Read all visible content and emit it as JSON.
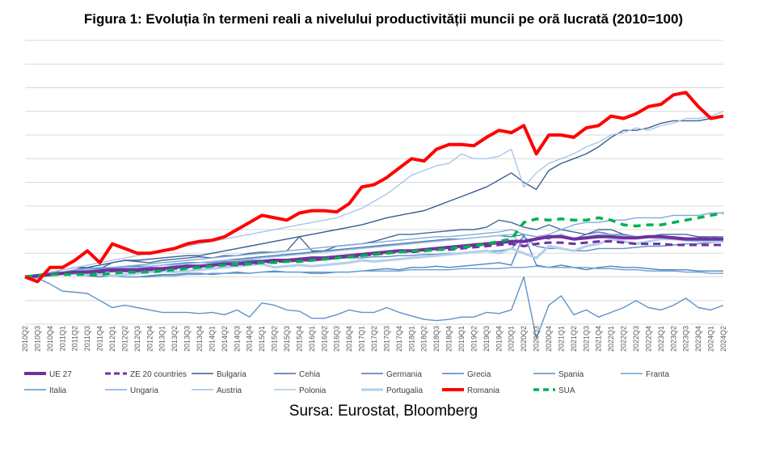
{
  "title": "Figura 1: Evoluția în termeni reali a nivelului productivității muncii pe oră lucrată (2010=100)",
  "source": "Sursa: Eurostat, Bloomberg",
  "chart_data": {
    "type": "line",
    "title": "Figura 1: Evoluția în termeni reali a nivelului productivității muncii pe oră lucrată (2010=100)",
    "xlabel": "",
    "ylabel": "",
    "grid": true,
    "y_tick_labels_visible": false,
    "legend_position": "bottom",
    "ylim": [
      80,
      200
    ],
    "x": [
      "2010Q2",
      "2010Q3",
      "2010Q4",
      "2011Q1",
      "2011Q2",
      "2011Q3",
      "2011Q4",
      "2012Q1",
      "2012Q2",
      "2012Q3",
      "2012Q4",
      "2013Q1",
      "2013Q2",
      "2013Q3",
      "2013Q4",
      "2014Q1",
      "2014Q2",
      "2014Q3",
      "2014Q4",
      "2015Q1",
      "2015Q2",
      "2015Q3",
      "2015Q4",
      "2016Q1",
      "2016Q2",
      "2016Q3",
      "2016Q4",
      "2017Q1",
      "2017Q2",
      "2017Q3",
      "2017Q4",
      "2018Q1",
      "2018Q2",
      "2018Q3",
      "2018Q4",
      "2019Q1",
      "2019Q2",
      "2019Q3",
      "2019Q4",
      "2020Q1",
      "2020Q2",
      "2020Q3",
      "2020Q4",
      "2021Q1",
      "2021Q2",
      "2021Q3",
      "2021Q4",
      "2022Q1",
      "2022Q2",
      "2022Q3",
      "2022Q4",
      "2023Q1",
      "2023Q2",
      "2023Q3",
      "2023Q4",
      "2024Q1",
      "2024Q2"
    ],
    "series": [
      {
        "name": "UE 27",
        "color": "#7030a0",
        "width": 4,
        "dash": "",
        "values": [
          100,
          100.5,
          101,
          101.5,
          102,
          102,
          102.5,
          103,
          103,
          103,
          103.5,
          103.5,
          104,
          104.5,
          104.5,
          105,
          105.5,
          105.5,
          106,
          106.5,
          107,
          107,
          107.5,
          108,
          108,
          108.5,
          109,
          109.5,
          110,
          110.5,
          111,
          111,
          111.5,
          112,
          112.5,
          113,
          113.5,
          114,
          114.5,
          115,
          115,
          116,
          117,
          117,
          116,
          116.5,
          117,
          117,
          116.5,
          116.5,
          117,
          117,
          116.5,
          116,
          116,
          116,
          116
        ]
      },
      {
        "name": "ZE 20 countries",
        "color": "#7030a0",
        "width": 3,
        "dash": "9,6",
        "values": [
          100,
          100.5,
          101,
          101.5,
          102,
          102,
          102,
          102.5,
          102.5,
          102.5,
          103,
          103,
          103.5,
          104,
          104,
          104.5,
          105,
          105,
          105.5,
          106,
          106.5,
          106.5,
          107,
          107,
          107.5,
          108,
          108.5,
          109,
          109.5,
          110,
          110.5,
          110.5,
          111,
          111.5,
          111.5,
          112,
          112.5,
          113,
          113.5,
          114,
          113,
          114,
          114.5,
          114.5,
          114,
          114.5,
          115,
          115,
          114.5,
          114,
          114,
          114,
          113.5,
          113.5,
          113.5,
          113.5,
          113.5
        ]
      },
      {
        "name": "Bulgaria",
        "color": "#3a5d8f",
        "width": 1.4,
        "dash": "",
        "values": [
          100,
          100.5,
          101,
          102,
          103,
          104,
          105,
          106,
          107,
          107,
          107.5,
          108,
          108.5,
          109,
          109,
          110,
          111,
          112,
          113,
          114,
          115,
          116,
          117,
          118,
          119,
          120,
          121,
          122,
          123.5,
          125,
          126,
          127,
          128,
          130,
          132,
          134,
          136,
          138,
          141,
          144,
          140,
          137,
          145,
          148,
          150,
          152,
          155,
          159,
          162,
          162,
          163,
          165,
          166,
          166,
          166,
          167,
          168
        ]
      },
      {
        "name": "Cehia",
        "color": "#44699c",
        "width": 1.4,
        "dash": "",
        "values": [
          100,
          101,
          101.5,
          103,
          104,
          104,
          103.5,
          106,
          107,
          106.5,
          106,
          107,
          107.5,
          108,
          108.5,
          108,
          109,
          109,
          110,
          110.5,
          110.5,
          111,
          117,
          111,
          111,
          113,
          113.5,
          114,
          115,
          116.5,
          118,
          118,
          118.5,
          119,
          119.5,
          120,
          120,
          121,
          124,
          123,
          121,
          120,
          122,
          120,
          119,
          118,
          120,
          120,
          118,
          117,
          117,
          118,
          118,
          118,
          117,
          117,
          116
        ]
      },
      {
        "name": "Germania",
        "color": "#4f77ad",
        "width": 1.4,
        "dash": "",
        "values": [
          100,
          100.5,
          101,
          102,
          102.5,
          102.5,
          103,
          104,
          104,
          104.5,
          104.5,
          105,
          105.5,
          106,
          106,
          106.5,
          107,
          107.5,
          108,
          108.5,
          109,
          109.5,
          110,
          110.5,
          111,
          111.5,
          112,
          112.5,
          113,
          113.5,
          114,
          114.5,
          115,
          115.5,
          116,
          116,
          116.5,
          117,
          117.5,
          117,
          118,
          117,
          116,
          118,
          116,
          118,
          119,
          118,
          118,
          117,
          117,
          117,
          117,
          116.5,
          116.5,
          117,
          117
        ]
      },
      {
        "name": "Grecia",
        "color": "#4e84bd",
        "width": 1.4,
        "dash": "",
        "values": [
          100,
          100,
          100.5,
          101,
          101.5,
          100.5,
          100,
          100.5,
          100,
          100,
          100.5,
          101,
          101,
          101.5,
          101.5,
          101,
          101.5,
          102,
          101.5,
          102,
          102.5,
          102,
          102,
          101.5,
          101.5,
          102,
          102,
          102.5,
          103,
          103.5,
          103,
          104,
          104,
          104.5,
          104,
          104.5,
          105,
          105.5,
          106,
          105,
          118,
          105,
          104,
          105,
          104,
          103,
          104,
          104.5,
          104,
          104,
          103.5,
          103,
          103,
          103,
          102.5,
          102.5,
          102.5
        ]
      },
      {
        "name": "Spania",
        "color": "#5b8fc5",
        "width": 1.4,
        "dash": "",
        "values": [
          100,
          100.5,
          101,
          102,
          102.5,
          103,
          103.5,
          104,
          104,
          104.5,
          104.5,
          105,
          105.5,
          106,
          106,
          106,
          106.5,
          106.5,
          107,
          107,
          107.5,
          107,
          107,
          107.5,
          107.5,
          108,
          108,
          108,
          108.5,
          108.5,
          109,
          109,
          109.5,
          109.5,
          110,
          110,
          110.5,
          111,
          111,
          112,
          117,
          113,
          112,
          112,
          111,
          111,
          112,
          112,
          112,
          112.5,
          113,
          113,
          113.5,
          114,
          114,
          114.5,
          115
        ]
      },
      {
        "name": "Franta",
        "color": "#6a9fd1",
        "width": 1.4,
        "dash": "",
        "values": [
          100,
          101,
          101,
          101.5,
          101,
          101,
          101,
          100.5,
          100,
          100,
          100,
          100.5,
          100.5,
          101,
          101,
          101.5,
          101.5,
          101.5,
          101.5,
          102,
          102,
          102,
          102,
          102,
          102,
          102,
          102,
          102.5,
          102.5,
          102.5,
          102.5,
          103,
          103,
          103,
          103,
          103.5,
          103.5,
          103.5,
          103.5,
          104,
          104,
          104.5,
          104,
          104,
          104,
          104,
          103.5,
          103.5,
          103,
          103,
          102.5,
          102.5,
          102.5,
          102,
          102,
          101.5,
          101.5
        ]
      },
      {
        "name": "Italia",
        "color": "#5c93cc",
        "width": 1.4,
        "dash": "",
        "values": [
          100,
          99.5,
          97,
          94,
          93.5,
          93,
          90,
          87,
          88,
          87,
          86,
          85,
          85,
          85,
          84.5,
          85,
          84,
          86,
          83,
          89,
          88,
          86,
          85.5,
          82.5,
          82.5,
          84,
          86,
          85,
          85,
          87,
          85,
          83.5,
          82,
          81.5,
          82,
          83,
          83,
          85,
          84.5,
          86,
          100,
          74,
          88,
          92,
          84,
          86,
          83,
          85,
          87,
          90,
          87,
          86,
          88,
          91,
          87,
          86,
          88
        ]
      },
      {
        "name": "Ungaria",
        "color": "#7eabd9",
        "width": 1.4,
        "dash": "",
        "values": [
          100,
          101,
          102,
          102,
          103,
          103.5,
          104,
          104,
          104.5,
          105,
          105.5,
          106,
          106.5,
          107,
          107.5,
          108,
          108.5,
          109,
          109.5,
          110,
          110.5,
          111,
          111.5,
          112,
          112.5,
          113,
          113.5,
          114,
          114.5,
          115,
          115.5,
          116,
          116.5,
          117,
          117,
          117.5,
          118,
          118.5,
          119,
          120,
          118,
          117,
          118,
          120,
          122,
          123,
          123,
          124,
          124,
          125,
          125,
          125,
          126,
          126,
          126,
          127,
          127
        ]
      },
      {
        "name": "Austria",
        "color": "#98bde2",
        "width": 1.4,
        "dash": "",
        "values": [
          100,
          100.5,
          101,
          102,
          102.5,
          103,
          103,
          103.5,
          104,
          104,
          104.5,
          105,
          105,
          105.5,
          106,
          106.5,
          107,
          107,
          107.5,
          108,
          108.5,
          109,
          109.5,
          110,
          110.5,
          111,
          111.5,
          112,
          112.5,
          113,
          113.5,
          114,
          114.5,
          115,
          115.5,
          116,
          116.5,
          117,
          117.5,
          118,
          113,
          116,
          117,
          118,
          116,
          117,
          118,
          118,
          117.5,
          117,
          117,
          117,
          116.5,
          116,
          116,
          116,
          116
        ]
      },
      {
        "name": "Polonia",
        "color": "#a9c7e8",
        "width": 1.4,
        "dash": "",
        "values": [
          100,
          101,
          102,
          103,
          104,
          105,
          106,
          107,
          108,
          109,
          110,
          111,
          112,
          113,
          114,
          115,
          116,
          117,
          118,
          119,
          120,
          121,
          122,
          123,
          124,
          125,
          127,
          129,
          132,
          135,
          139,
          143,
          145,
          147,
          148,
          152,
          150,
          150,
          151,
          154,
          138,
          144,
          148,
          150,
          152,
          155,
          157,
          160,
          161,
          163,
          162,
          164,
          165,
          167,
          167,
          168,
          170
        ]
      },
      {
        "name": "Portugalia",
        "color": "#b3cfec",
        "width": 3,
        "dash": "",
        "values": [
          100,
          100.5,
          101,
          101.5,
          101.5,
          101,
          101,
          100.5,
          101,
          101.5,
          102,
          102.5,
          102,
          102.5,
          103,
          103.5,
          104,
          104.5,
          105,
          105.5,
          104,
          104.5,
          105,
          104.5,
          105,
          105.5,
          106,
          107,
          106.5,
          107,
          107.5,
          108,
          108.5,
          109,
          109.5,
          110,
          110.5,
          111,
          110,
          112,
          110,
          108,
          113,
          112,
          111,
          113,
          114,
          116,
          115,
          114,
          115,
          116,
          116,
          115.5,
          115,
          115,
          115
        ]
      },
      {
        "name": "Romania",
        "color": "#ff0000",
        "width": 4,
        "dash": "",
        "values": [
          100,
          98,
          104,
          104,
          107,
          111,
          106,
          114,
          112,
          110,
          110,
          111,
          112,
          114,
          115,
          115.5,
          117,
          120,
          123,
          126,
          125,
          124,
          127,
          128,
          128,
          127.5,
          131,
          138,
          139,
          142,
          146,
          150,
          149,
          154,
          156,
          156,
          155.5,
          159,
          162,
          161,
          164,
          152,
          160,
          160,
          159,
          163,
          164,
          168,
          167,
          169,
          172,
          173,
          177,
          178,
          172,
          167,
          168
        ]
      },
      {
        "name": "SUA",
        "color": "#00b050",
        "width": 3.5,
        "dash": "9,7",
        "values": [
          100,
          100.5,
          101,
          101,
          101,
          101,
          101,
          101.5,
          102,
          102,
          102,
          102.5,
          103,
          103.5,
          104,
          104.5,
          105,
          105.5,
          105.5,
          106,
          106,
          106.5,
          106.5,
          107,
          107.5,
          108,
          108.5,
          109,
          109.5,
          110,
          110.5,
          111,
          111,
          111.5,
          112,
          112.5,
          113,
          114,
          115,
          116,
          123,
          124.5,
          124,
          124.5,
          124,
          124,
          125,
          124,
          122,
          121.5,
          122,
          122,
          123,
          124,
          125,
          126,
          127
        ]
      }
    ]
  }
}
